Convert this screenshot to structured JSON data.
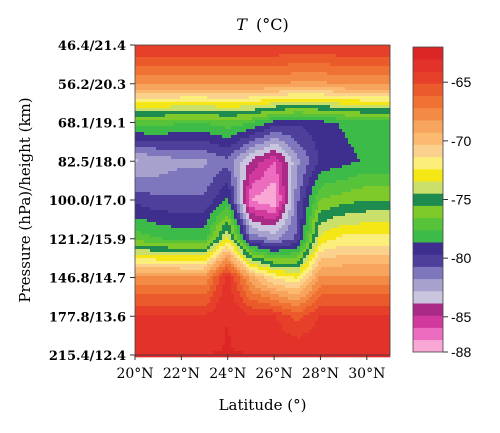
{
  "chart_data": {
    "type": "heatmap",
    "title": "T (°C)",
    "title_var": "T",
    "title_unit": "(°C)",
    "xlabel": "Latitude (°)",
    "ylabel": "Pressure (hPa)/height (km)",
    "x_ticks": [
      "20°N",
      "22°N",
      "24°N",
      "26°N",
      "28°N",
      "30°N"
    ],
    "y_ticks": [
      "46.4/21.4",
      "56.2/20.3",
      "68.1/19.1",
      "82.5/18.0",
      "100.0/17.0",
      "121.2/15.9",
      "146.8/14.7",
      "177.8/13.6",
      "215.4/12.4"
    ],
    "colorbar": {
      "ticks": [
        "-65",
        "-70",
        "-75",
        "-80",
        "-85",
        "-88"
      ],
      "range": [
        -88,
        -62
      ],
      "palette": [
        "#f9a7d4",
        "#ec6dbf",
        "#d13a9c",
        "#aa2a87",
        "#c9c5de",
        "#a7a1ce",
        "#7f77bd",
        "#4d3f9a",
        "#3e2e8d",
        "#3dbb49",
        "#56c33b",
        "#7fca2b",
        "#1e8b4f",
        "#cbe06b",
        "#f5e716",
        "#fbee7b",
        "#fbd28d",
        "#fbba6f",
        "#f6a45e",
        "#f38b45",
        "#f07233",
        "#ea5a2b",
        "#e6402b",
        "#e2322a",
        "#dc2626"
      ]
    },
    "x": [
      20,
      21,
      22,
      23,
      24,
      25,
      26,
      27,
      28,
      29,
      30,
      31
    ],
    "y": [
      46.4,
      56.2,
      68.1,
      82.5,
      100.0,
      121.2,
      146.8,
      177.8,
      215.4
    ],
    "values": [
      [
        -64,
        -64,
        -64,
        -64,
        -64,
        -64,
        -64,
        -64,
        -64,
        -64,
        -64,
        -64
      ],
      [
        -68,
        -68,
        -68,
        -68,
        -68,
        -68,
        -68,
        -68.5,
        -68.5,
        -68,
        -68,
        -68
      ],
      [
        -77,
        -77,
        -77.5,
        -77.5,
        -77,
        -77.5,
        -79,
        -79.5,
        -79,
        -78.5,
        -78,
        -78
      ],
      [
        -83,
        -82.5,
        -82,
        -82,
        -81,
        -84,
        -86,
        -82,
        -79.5,
        -79,
        -78.5,
        -78.5
      ],
      [
        -80,
        -80.5,
        -80.5,
        -80.5,
        -78.5,
        -87,
        -88,
        -81,
        -76.5,
        -76,
        -75.5,
        -75.5
      ],
      [
        -77,
        -77.5,
        -78,
        -78,
        -73,
        -81,
        -82,
        -80.5,
        -73,
        -72,
        -72,
        -72
      ],
      [
        -68,
        -68,
        -68,
        -68,
        -63.5,
        -69,
        -71.5,
        -72.5,
        -68,
        -68,
        -68,
        -68
      ],
      [
        -64,
        -64,
        -64,
        -64,
        -63,
        -64,
        -64,
        -65.5,
        -64,
        -64,
        -64,
        -64
      ],
      [
        -63,
        -63,
        -63,
        -63,
        -63,
        -63,
        -63,
        -63,
        -63,
        -63,
        -63,
        -63
      ]
    ]
  }
}
